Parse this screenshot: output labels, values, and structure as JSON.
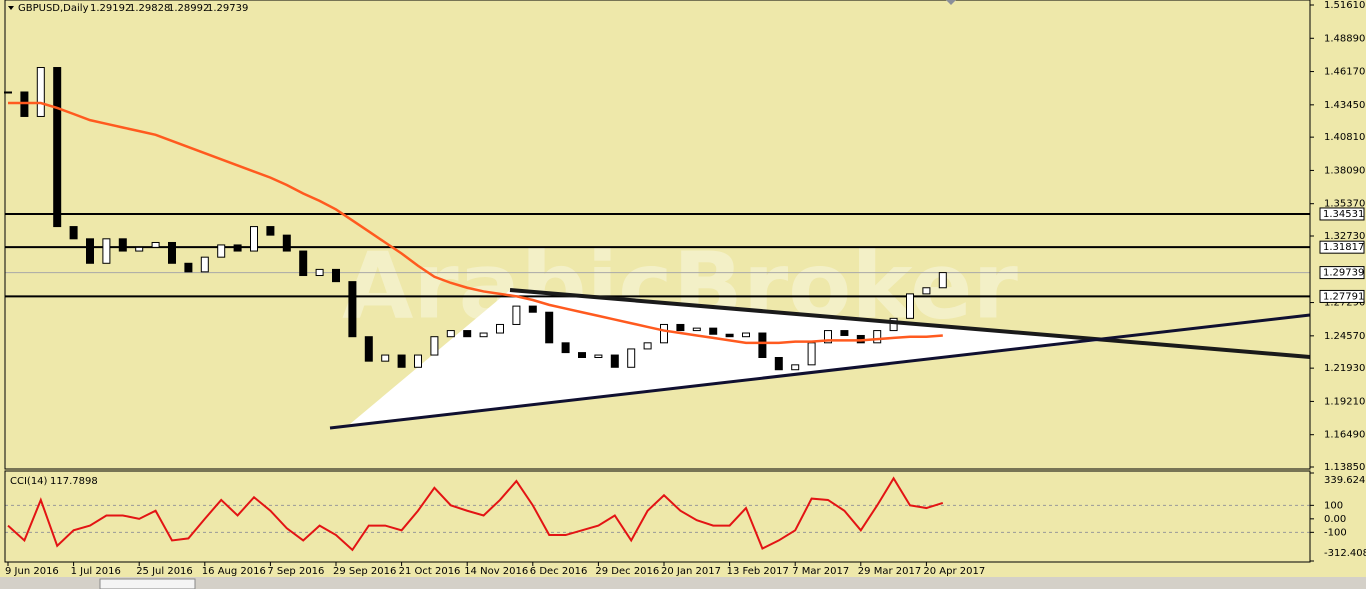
{
  "chart_data": [
    {
      "type": "candlestick",
      "symbol": "GBPUSD,Daily",
      "ohlc": [
        1.29192,
        1.29828,
        1.28992,
        1.29739
      ],
      "watermark": "ArabicBroker",
      "background": "#eee8aa",
      "categories": [
        "9 Jun 2016",
        null,
        null,
        null,
        "1 Jul 2016",
        null,
        null,
        null,
        "25 Jul 2016",
        null,
        null,
        null,
        "16 Aug 2016",
        null,
        null,
        null,
        "7 Sep 2016",
        null,
        null,
        null,
        "29 Sep 2016",
        null,
        null,
        null,
        "21 Oct 2016",
        null,
        null,
        null,
        "14 Nov 2016",
        null,
        null,
        null,
        "6 Dec 2016",
        null,
        null,
        null,
        "29 Dec 2016",
        null,
        null,
        null,
        "20 Jan 2017",
        null,
        null,
        null,
        "13 Feb 2017",
        null,
        null,
        null,
        "7 Mar 2017",
        null,
        null,
        null,
        "29 Mar 2017",
        null,
        null,
        null,
        "20 Apr 2017",
        null
      ],
      "series": [
        {
          "color": "#000000",
          "values": [
            1.445,
            1.425,
            1.465,
            1.335,
            1.325,
            1.305,
            1.325,
            1.315,
            1.318,
            1.322,
            1.305,
            1.298,
            1.31,
            1.32,
            1.315,
            1.335,
            1.328,
            1.315,
            1.295,
            1.3,
            1.29,
            1.245,
            1.225,
            1.23,
            1.22,
            1.23,
            1.245,
            1.25,
            1.245,
            1.248,
            1.255,
            1.27,
            1.265,
            1.24,
            1.232,
            1.228,
            1.23,
            1.22,
            1.235,
            1.24,
            1.255,
            1.25,
            1.252,
            1.247,
            1.245,
            1.248,
            1.228,
            1.218,
            1.222,
            1.24,
            1.25,
            1.246,
            1.24,
            1.25,
            1.26,
            1.28,
            1.285,
            1.29739
          ]
        },
        {
          "color": "#ff5a1f",
          "values": [
            1.436,
            1.436,
            1.436,
            1.432,
            1.427,
            1.422,
            1.419,
            1.416,
            1.413,
            1.41,
            1.405,
            1.4,
            1.395,
            1.39,
            1.385,
            1.38,
            1.375,
            1.369,
            1.362,
            1.356,
            1.349,
            1.34,
            1.331,
            1.322,
            1.313,
            1.303,
            1.294,
            1.289,
            1.285,
            1.282,
            1.28,
            1.278,
            1.275,
            1.271,
            1.268,
            1.265,
            1.262,
            1.259,
            1.256,
            1.253,
            1.25,
            1.248,
            1.246,
            1.244,
            1.242,
            1.24,
            1.24,
            1.24,
            1.241,
            1.241,
            1.242,
            1.242,
            1.242,
            1.243,
            1.244,
            1.245,
            1.245,
            1.246
          ]
        }
      ],
      "bull_fill": "#ffffff",
      "bear_fill": "#000000",
      "ylim": [
        1.1385,
        1.5161
      ],
      "yticks": [
        {
          "value": 1.5161,
          "label": "1.51610"
        },
        {
          "value": 1.4889,
          "label": "1.48890"
        },
        {
          "value": 1.4617,
          "label": "1.46170"
        },
        {
          "value": 1.4345,
          "label": "1.43450"
        },
        {
          "value": 1.4081,
          "label": "1.40810"
        },
        {
          "value": 1.3809,
          "label": "1.38090"
        },
        {
          "value": 1.3537,
          "label": "1.35370"
        },
        {
          "value": 1.3273,
          "label": "1.32730"
        },
        {
          "value": 1.2729,
          "label": "1.27290"
        },
        {
          "value": 1.2457,
          "label": "1.24570"
        },
        {
          "value": 1.2193,
          "label": "1.21930"
        },
        {
          "value": 1.1921,
          "label": "1.19210"
        },
        {
          "value": 1.1649,
          "label": "1.16490"
        },
        {
          "value": 1.1385,
          "label": "1.13850"
        }
      ],
      "levels": [
        1.34531,
        1.31817,
        1.27791
      ],
      "last_price": 1.29739
    },
    {
      "type": "line",
      "title": "CCI(14)",
      "last_value": 117.7898,
      "series": [
        {
          "color": "#e31414",
          "values": [
            -50,
            -160,
            140,
            -200,
            -85,
            -50,
            25,
            25,
            0,
            60,
            -160,
            -145,
            0,
            140,
            25,
            160,
            60,
            -70,
            -160,
            -50,
            -120,
            -230,
            -50,
            -50,
            -85,
            60,
            230,
            100,
            60,
            25,
            140,
            280,
            100,
            -120,
            -120,
            -85,
            -50,
            25,
            -160,
            60,
            175,
            60,
            -10,
            -50,
            -50,
            80,
            -220,
            -160,
            -85,
            150,
            140,
            60,
            -85,
            100,
            300,
            100,
            80,
            117.7898
          ]
        }
      ],
      "ylim": [
        -312.4086,
        339.6246
      ],
      "yticks": [
        339.6246,
        100,
        {
          "value": 0,
          "label": "0.00"
        },
        -100,
        -312.4086
      ],
      "levels": [
        100,
        -100
      ]
    }
  ]
}
